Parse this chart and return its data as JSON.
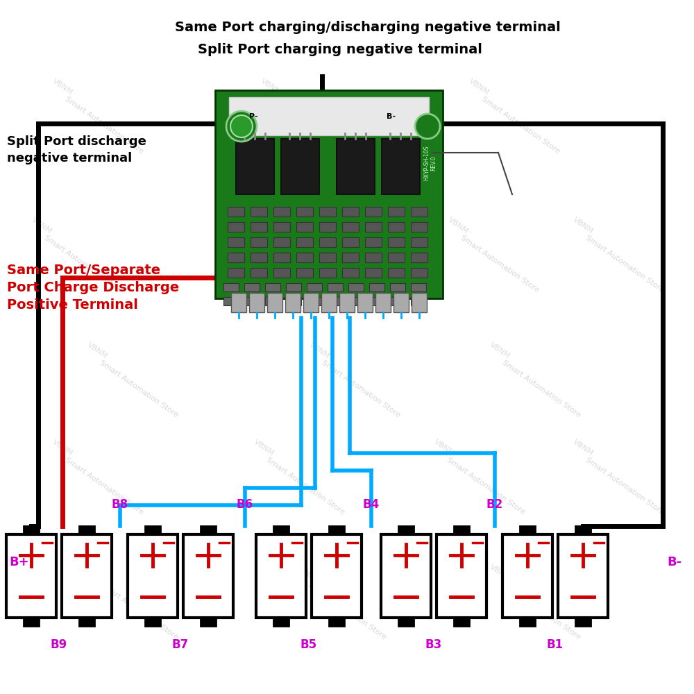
{
  "bg_color": "#ffffff",
  "title_text1": "Same Port charging/discharging negative terminal",
  "title_text2": "Split Port charging negative terminal",
  "label_split_discharge": "Split Port discharge\nnegative terminal",
  "label_positive": "Same Port/Separate\nPort Charge Discharge\nPositive Terminal",
  "battery_labels_top": [
    "B+",
    "B8",
    "B6",
    "B4",
    "B2",
    "B-"
  ],
  "battery_labels_bottom": [
    "B9",
    "B7",
    "B5",
    "B3",
    "B1"
  ],
  "label_color": "#cc00cc",
  "wire_black": "#000000",
  "wire_red": "#cc0000",
  "wire_blue": "#00aaff",
  "text_black": "#000000",
  "text_red": "#cc0000",
  "board_color": "#1a7a1a",
  "battery_outline": "#000000",
  "battery_fill": "#ffffff",
  "plus_color": "#cc0000",
  "lw_main": 5,
  "lw_wire": 4,
  "lw_bat": 3
}
